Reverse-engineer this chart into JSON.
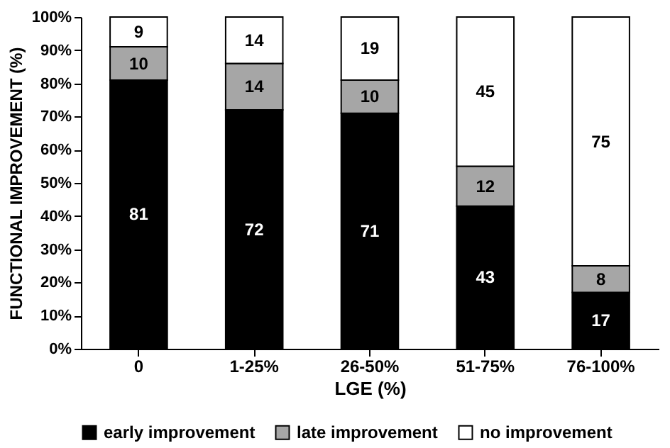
{
  "chart_data": {
    "type": "bar",
    "stacked": true,
    "xlabel": "LGE (%)",
    "ylabel": "FUNCTIONAL IMPROVEMENT (%)",
    "categories": [
      "0",
      "1-25%",
      "26-50%",
      "51-75%",
      "76-100%"
    ],
    "series": [
      {
        "name": "early improvement",
        "color": "#000000",
        "values": [
          81,
          72,
          71,
          43,
          17
        ]
      },
      {
        "name": "late improvement",
        "color": "#a6a6a6",
        "values": [
          10,
          14,
          10,
          12,
          8
        ]
      },
      {
        "name": "no improvement",
        "color": "#ffffff",
        "values": [
          9,
          14,
          19,
          45,
          75
        ]
      }
    ],
    "ylim": [
      0,
      100
    ],
    "yticks": [
      {
        "value": 0,
        "label": "0%"
      },
      {
        "value": 10,
        "label": "10%"
      },
      {
        "value": 20,
        "label": "20%"
      },
      {
        "value": 30,
        "label": "30%"
      },
      {
        "value": 40,
        "label": "40%"
      },
      {
        "value": 50,
        "label": "50%"
      },
      {
        "value": 60,
        "label": "60%"
      },
      {
        "value": 70,
        "label": "70%"
      },
      {
        "value": 80,
        "label": "80%"
      },
      {
        "value": 90,
        "label": "90%"
      },
      {
        "value": 100,
        "label": "100%"
      }
    ],
    "data_labels": true,
    "legend": "bottom",
    "grid": false
  }
}
